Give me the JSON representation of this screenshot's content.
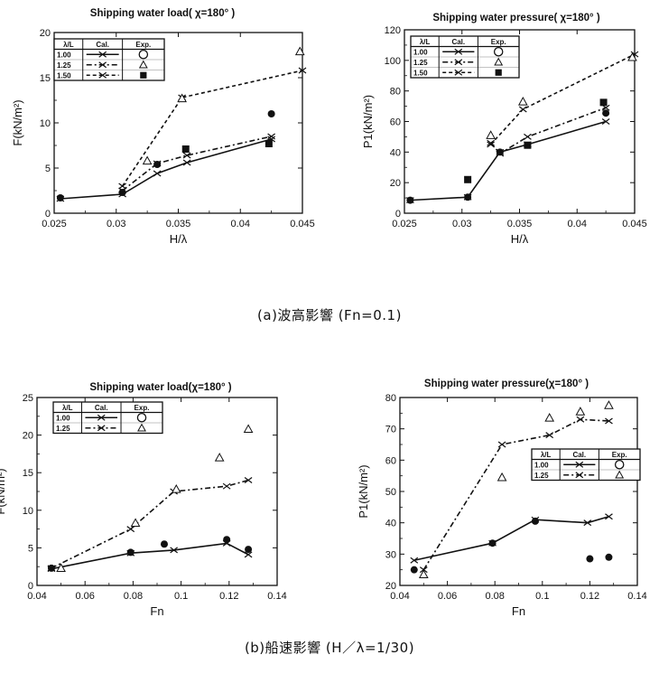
{
  "captions": {
    "a": "(a)波高影響 (Fn=0.1)",
    "b": "(b)船速影響 (H／λ=1/30)"
  },
  "legend_headers": {
    "col1": "λ/L",
    "col2": "Cal.",
    "col3": "Exp."
  },
  "colors": {
    "ink": "#111111",
    "background": "#ffffff"
  },
  "chart_data": [
    {
      "id": "load_wave",
      "type": "line",
      "title": "Shipping water load( χ=180° )",
      "xlabel": "H/λ",
      "ylabel": "F(kN/m²)",
      "xlim": [
        0.025,
        0.045
      ],
      "ylim": [
        0,
        20
      ],
      "xticks": [
        0.025,
        0.03,
        0.035,
        0.04,
        0.045
      ],
      "xtick_labels": [
        "0.025",
        "0.03",
        "0.035",
        "0.04",
        "0.045"
      ],
      "yticks": [
        0,
        5,
        10,
        15,
        20
      ],
      "ytick_labels": [
        "0",
        "5",
        "10",
        "15",
        "20"
      ],
      "legend_position": "top-left",
      "series": [
        {
          "name": "1.00",
          "kind": "cal",
          "style": "solid",
          "x": [
            0.0255,
            0.0305,
            0.0333,
            0.0357,
            0.0425
          ],
          "y": [
            1.6,
            2.1,
            4.4,
            5.6,
            8.2
          ]
        },
        {
          "name": "1.25",
          "kind": "cal",
          "style": "dashdot",
          "x": [
            0.0305,
            0.0333,
            0.0357,
            0.0425
          ],
          "y": [
            2.5,
            5.5,
            6.4,
            8.5
          ]
        },
        {
          "name": "1.50",
          "kind": "cal",
          "style": "dotted",
          "x": [
            0.0305,
            0.0353,
            0.045
          ],
          "y": [
            3.0,
            12.8,
            15.8
          ]
        },
        {
          "name": "1.00",
          "kind": "exp",
          "marker": "filled-circle",
          "x": [
            0.0255,
            0.0305,
            0.0333,
            0.0425
          ],
          "y": [
            1.7,
            2.3,
            5.4,
            11.0
          ]
        },
        {
          "name": "1.25",
          "kind": "exp",
          "marker": "open-triangle",
          "x": [
            0.0325,
            0.0353,
            0.0448
          ],
          "y": [
            5.8,
            12.7,
            17.9
          ]
        },
        {
          "name": "1.50",
          "kind": "exp",
          "marker": "filled-square",
          "x": [
            0.0356,
            0.0423
          ],
          "y": [
            7.1,
            7.7
          ]
        }
      ]
    },
    {
      "id": "pressure_wave",
      "type": "line",
      "title": "Shipping water pressure( χ=180° )",
      "xlabel": "H/λ",
      "ylabel": "P1(kN/m²)",
      "xlim": [
        0.025,
        0.045
      ],
      "ylim": [
        0,
        120
      ],
      "xticks": [
        0.025,
        0.03,
        0.035,
        0.04,
        0.045
      ],
      "xtick_labels": [
        "0.025",
        "0.03",
        "0.035",
        "0.04",
        "0.045"
      ],
      "yticks": [
        0,
        20,
        40,
        60,
        80,
        100,
        120
      ],
      "ytick_labels": [
        "0",
        "20",
        "40",
        "60",
        "80",
        "100",
        "120"
      ],
      "legend_position": "top-left",
      "series": [
        {
          "name": "1.00",
          "kind": "cal",
          "style": "solid",
          "x": [
            0.0255,
            0.0305,
            0.0333,
            0.0357,
            0.0425
          ],
          "y": [
            8.5,
            10.5,
            40.0,
            45.0,
            60.0
          ]
        },
        {
          "name": "1.25",
          "kind": "cal",
          "style": "dashdot",
          "x": [
            0.0325,
            0.0333,
            0.0357,
            0.0425
          ],
          "y": [
            46.0,
            39.0,
            50.0,
            69.0
          ]
        },
        {
          "name": "1.50",
          "kind": "cal",
          "style": "dotted",
          "x": [
            0.0325,
            0.0353,
            0.045
          ],
          "y": [
            45.0,
            68.0,
            104.0
          ]
        },
        {
          "name": "1.00",
          "kind": "exp",
          "marker": "filled-circle",
          "x": [
            0.0255,
            0.0305,
            0.0333,
            0.0425
          ],
          "y": [
            8.5,
            10.5,
            40.0,
            65.5
          ]
        },
        {
          "name": "1.25",
          "kind": "exp",
          "marker": "open-triangle",
          "x": [
            0.0325,
            0.0353,
            0.0448
          ],
          "y": [
            51.0,
            73.0,
            102.0
          ]
        },
        {
          "name": "1.50",
          "kind": "exp",
          "marker": "filled-square",
          "x": [
            0.0305,
            0.0357,
            0.0423
          ],
          "y": [
            22.0,
            44.5,
            72.5
          ]
        }
      ]
    },
    {
      "id": "load_speed",
      "type": "line",
      "title": "Shipping water load(χ=180° )",
      "xlabel": "Fn",
      "ylabel": "F(kN/m²)",
      "xlim": [
        0.04,
        0.14
      ],
      "ylim": [
        0,
        25
      ],
      "xticks": [
        0.04,
        0.06,
        0.08,
        0.1,
        0.12,
        0.14
      ],
      "xtick_labels": [
        "0.04",
        "0.06",
        "0.08",
        "0.1",
        "0.12",
        "0.14"
      ],
      "yticks": [
        0,
        5,
        10,
        15,
        20,
        25
      ],
      "ytick_labels": [
        "0",
        "5",
        "10",
        "15",
        "20",
        "25"
      ],
      "legend_position": "top-left",
      "series": [
        {
          "name": "1.00",
          "kind": "cal",
          "style": "solid",
          "x": [
            0.046,
            0.079,
            0.097,
            0.119,
            0.128
          ],
          "y": [
            2.2,
            4.3,
            4.7,
            5.6,
            4.1
          ]
        },
        {
          "name": "1.25",
          "kind": "cal",
          "style": "dashdot",
          "x": [
            0.046,
            0.079,
            0.097,
            0.119,
            0.128
          ],
          "y": [
            2.3,
            7.5,
            12.5,
            13.2,
            14.0
          ]
        },
        {
          "name": "1.00",
          "kind": "exp",
          "marker": "filled-circle",
          "x": [
            0.046,
            0.079,
            0.093,
            0.119,
            0.128
          ],
          "y": [
            2.3,
            4.4,
            5.5,
            6.1,
            4.8
          ]
        },
        {
          "name": "1.25",
          "kind": "exp",
          "marker": "open-triangle",
          "x": [
            0.05,
            0.081,
            0.098,
            0.116,
            0.128
          ],
          "y": [
            2.3,
            8.3,
            12.8,
            17.0,
            20.8
          ]
        }
      ]
    },
    {
      "id": "pressure_speed",
      "type": "line",
      "title": "Shipping water pressure(χ=180° )",
      "xlabel": "Fn",
      "ylabel": "P1(kN/m²)",
      "xlim": [
        0.04,
        0.14
      ],
      "ylim": [
        20,
        80
      ],
      "xticks": [
        0.04,
        0.06,
        0.08,
        0.1,
        0.12,
        0.14
      ],
      "xtick_labels": [
        "0.04",
        "0.06",
        "0.08",
        "0.1",
        "0.12",
        "0.14"
      ],
      "yticks": [
        20,
        30,
        40,
        50,
        60,
        70,
        80
      ],
      "ytick_labels": [
        "20",
        "30",
        "40",
        "50",
        "60",
        "70",
        "80"
      ],
      "legend_position": "center-right",
      "series": [
        {
          "name": "1.00",
          "kind": "cal",
          "style": "solid",
          "x": [
            0.046,
            0.079,
            0.097,
            0.119,
            0.128
          ],
          "y": [
            28.0,
            33.5,
            41.0,
            40.0,
            42.0
          ]
        },
        {
          "name": "1.25",
          "kind": "cal",
          "style": "dashdot",
          "x": [
            0.05,
            0.083,
            0.103,
            0.116,
            0.128
          ],
          "y": [
            25.0,
            65.0,
            68.0,
            73.0,
            72.5
          ]
        },
        {
          "name": "1.00",
          "kind": "exp",
          "marker": "filled-circle",
          "x": [
            0.046,
            0.079,
            0.097,
            0.12,
            0.128
          ],
          "y": [
            25.0,
            33.5,
            40.5,
            28.5,
            29.0
          ]
        },
        {
          "name": "1.25",
          "kind": "exp",
          "marker": "open-triangle",
          "x": [
            0.05,
            0.083,
            0.103,
            0.116,
            0.128
          ],
          "y": [
            23.5,
            54.5,
            73.5,
            75.5,
            77.5
          ]
        }
      ]
    }
  ]
}
